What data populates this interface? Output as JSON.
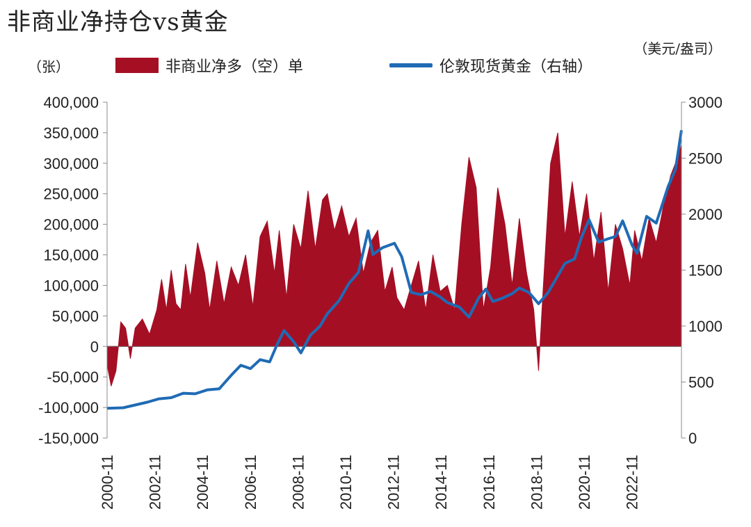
{
  "title": "非商业净持仓vs黄金",
  "left_unit": "（张）",
  "right_unit": "（美元/盎司）",
  "legend": {
    "bar": "非商业净多（空）单",
    "line": "伦敦现货黄金（右轴）"
  },
  "colors": {
    "bar": "#a50f24",
    "line": "#1f6bb5"
  },
  "chart_data": {
    "type": "bar+line",
    "left_axis": {
      "min": -150000,
      "max": 400000,
      "ticks": [
        "400,000",
        "350,000",
        "300,000",
        "250,000",
        "200,000",
        "150,000",
        "100,000",
        "50,000",
        "0",
        "-50,000",
        "-100,000",
        "-150,000"
      ]
    },
    "right_axis": {
      "min": 0,
      "max": 3000,
      "ticks": [
        "3000",
        "2500",
        "2000",
        "1500",
        "1000",
        "500",
        "0"
      ]
    },
    "x_range": [
      2000.83,
      2024.75
    ],
    "x_ticks": [
      "2000-11",
      "2002-11",
      "2004-11",
      "2006-11",
      "2008-11",
      "2010-11",
      "2012-11",
      "2014-11",
      "2016-11",
      "2018-11",
      "2020-11",
      "2022-11"
    ],
    "series": [
      {
        "name": "非商业净多（空）单",
        "type": "area-bar",
        "axis": "left",
        "x": [
          2000.83,
          2001.0,
          2001.2,
          2001.4,
          2001.6,
          2001.8,
          2002.0,
          2002.3,
          2002.6,
          2002.9,
          2003.1,
          2003.3,
          2003.5,
          2003.7,
          2003.9,
          2004.1,
          2004.3,
          2004.6,
          2004.9,
          2005.1,
          2005.4,
          2005.7,
          2006.0,
          2006.3,
          2006.6,
          2006.9,
          2007.2,
          2007.5,
          2007.8,
          2008.0,
          2008.3,
          2008.6,
          2008.9,
          2009.2,
          2009.5,
          2009.8,
          2010.0,
          2010.3,
          2010.6,
          2010.9,
          2011.2,
          2011.5,
          2011.8,
          2012.1,
          2012.4,
          2012.7,
          2012.9,
          2013.2,
          2013.5,
          2013.8,
          2014.1,
          2014.4,
          2014.7,
          2015.0,
          2015.3,
          2015.6,
          2015.9,
          2016.2,
          2016.5,
          2016.8,
          2017.1,
          2017.4,
          2017.7,
          2018.0,
          2018.3,
          2018.6,
          2018.8,
          2019.0,
          2019.3,
          2019.6,
          2019.9,
          2020.2,
          2020.5,
          2020.8,
          2021.1,
          2021.4,
          2021.7,
          2022.0,
          2022.3,
          2022.6,
          2022.8,
          2023.1,
          2023.4,
          2023.7,
          2024.0,
          2024.3,
          2024.6,
          2024.75
        ],
        "values": [
          -30000,
          -65000,
          -40000,
          40000,
          30000,
          -20000,
          30000,
          45000,
          20000,
          60000,
          110000,
          60000,
          125000,
          70000,
          60000,
          135000,
          80000,
          170000,
          120000,
          60000,
          140000,
          70000,
          130000,
          100000,
          150000,
          65000,
          180000,
          205000,
          120000,
          190000,
          80000,
          200000,
          160000,
          255000,
          160000,
          240000,
          250000,
          190000,
          230000,
          180000,
          210000,
          120000,
          170000,
          190000,
          90000,
          130000,
          80000,
          60000,
          100000,
          140000,
          60000,
          150000,
          90000,
          100000,
          60000,
          200000,
          310000,
          260000,
          60000,
          130000,
          260000,
          200000,
          100000,
          210000,
          120000,
          60000,
          -40000,
          100000,
          300000,
          350000,
          180000,
          270000,
          180000,
          250000,
          140000,
          220000,
          90000,
          200000,
          160000,
          100000,
          190000,
          140000,
          210000,
          170000,
          230000,
          280000,
          310000,
          330000
        ]
      },
      {
        "name": "伦敦现货黄金（右轴）",
        "type": "line",
        "axis": "right",
        "x": [
          2000.83,
          2001.5,
          2002.0,
          2002.5,
          2003.0,
          2003.5,
          2004.0,
          2004.5,
          2005.0,
          2005.5,
          2006.0,
          2006.4,
          2006.8,
          2007.2,
          2007.6,
          2007.9,
          2008.2,
          2008.6,
          2008.9,
          2009.3,
          2009.7,
          2010.0,
          2010.5,
          2010.9,
          2011.3,
          2011.7,
          2011.9,
          2012.3,
          2012.8,
          2013.1,
          2013.5,
          2013.9,
          2014.3,
          2014.7,
          2015.0,
          2015.5,
          2015.9,
          2016.3,
          2016.6,
          2016.9,
          2017.3,
          2017.7,
          2018.0,
          2018.4,
          2018.8,
          2019.2,
          2019.6,
          2019.9,
          2020.3,
          2020.6,
          2020.9,
          2021.3,
          2021.7,
          2022.0,
          2022.3,
          2022.7,
          2022.9,
          2023.3,
          2023.7,
          2023.9,
          2024.2,
          2024.5,
          2024.75
        ],
        "values": [
          265,
          270,
          295,
          320,
          350,
          360,
          400,
          395,
          430,
          440,
          560,
          650,
          620,
          700,
          680,
          830,
          960,
          860,
          760,
          920,
          1000,
          1110,
          1230,
          1380,
          1480,
          1850,
          1640,
          1700,
          1740,
          1620,
          1300,
          1280,
          1310,
          1260,
          1210,
          1170,
          1080,
          1250,
          1330,
          1220,
          1250,
          1290,
          1340,
          1300,
          1200,
          1300,
          1450,
          1560,
          1600,
          1800,
          1950,
          1750,
          1780,
          1800,
          1940,
          1720,
          1650,
          1980,
          1920,
          2050,
          2250,
          2400,
          2750
        ]
      }
    ]
  }
}
